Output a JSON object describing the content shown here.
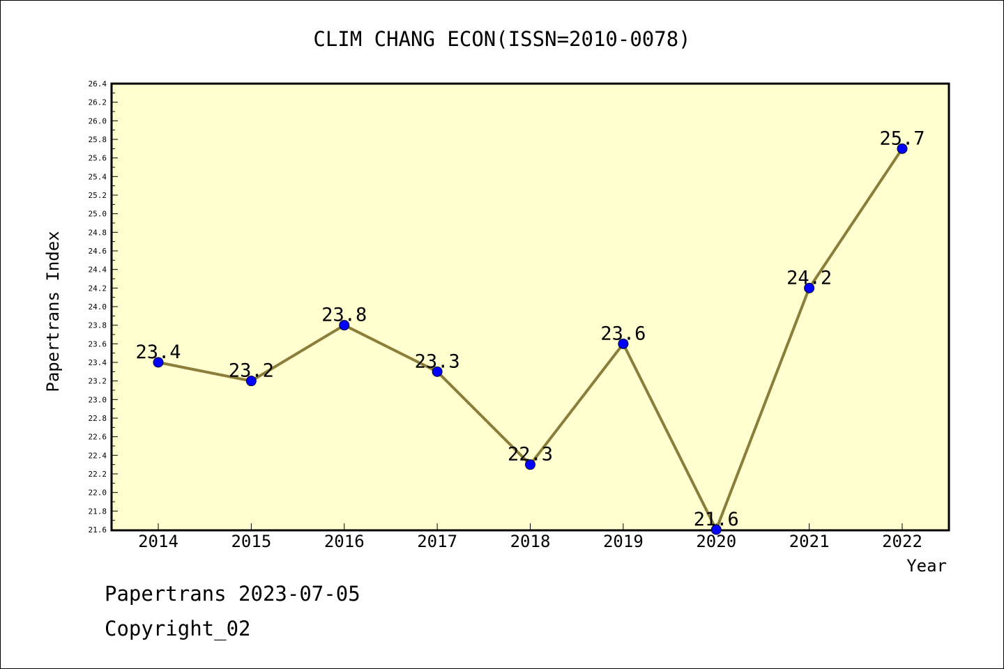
{
  "chart_data": {
    "type": "line",
    "title": "CLIM CHANG ECON(ISSN=2010-0078)",
    "xlabel": "Year",
    "ylabel": "Papertrans Index",
    "categories": [
      "2014",
      "2015",
      "2016",
      "2017",
      "2018",
      "2019",
      "2020",
      "2021",
      "2022"
    ],
    "values": [
      23.4,
      23.2,
      23.8,
      23.3,
      22.3,
      23.6,
      21.6,
      24.2,
      25.7
    ],
    "data_labels": [
      "23.4",
      "23.2",
      "23.8",
      "23.3",
      "22.3",
      "23.6",
      "21.6",
      "24.2",
      "25.7"
    ],
    "ylim": [
      21.6,
      26.4
    ],
    "y_ticks": [
      "21.6",
      "21.8",
      "22.0",
      "22.2",
      "22.4",
      "22.6",
      "22.8",
      "23.0",
      "23.2",
      "23.4",
      "23.6",
      "23.8",
      "24.0",
      "24.2",
      "24.4",
      "24.6",
      "24.8",
      "25.0",
      "25.2",
      "25.4",
      "25.6",
      "25.8",
      "26.0",
      "26.2",
      "26.4"
    ],
    "grid": false,
    "legend": "none",
    "colors": {
      "plot_background": "#ffffd0",
      "line": "#8b7d3a",
      "marker": "#0000ff"
    }
  },
  "footer": {
    "line1": "Papertrans 2023-07-05",
    "line2": "Copyright_02"
  }
}
